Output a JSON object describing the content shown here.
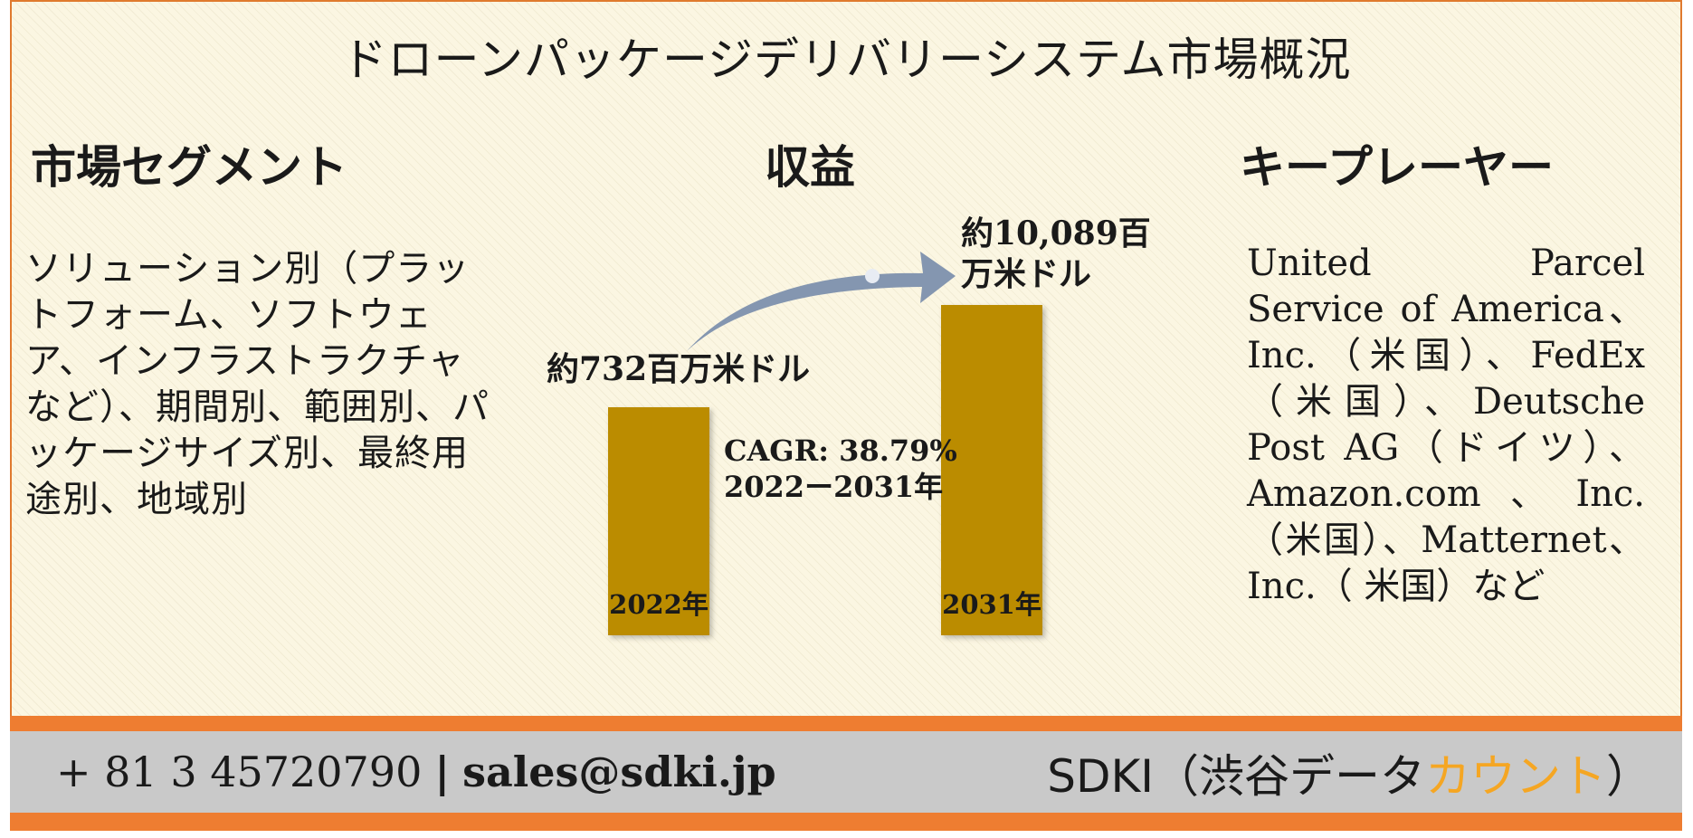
{
  "title": "ドローンパッケージデリバリーシステム市場概況",
  "segments": {
    "heading": "市場セグメント",
    "text": "ソリューション別（プラットフォーム、ソフトウェア、インフラストラクチャなど）、期間別、範囲別、パッケージサイズ別、最終用途別、地域別"
  },
  "revenue": {
    "heading": "収益",
    "cagr_line1": "CAGR: 38.79%",
    "cagr_line2": "2022ー2031年"
  },
  "key_players": {
    "heading": "キープレーヤー",
    "text": "United Parcel Service of America、Inc.（米国）、FedEx（米国）、Deutsche Post AG（ドイツ）、Amazon.com、Inc.（米国）、Matternet、Inc.（ 米国）など"
  },
  "chart_data": {
    "type": "bar",
    "categories": [
      "2022年",
      "2031年"
    ],
    "values": [
      732,
      10089
    ],
    "value_labels": [
      "約732百万米ドル",
      "約10,089百万米ドル"
    ],
    "bar_color": "#bb8c00",
    "arrow_color": "#8496b0"
  },
  "footer": {
    "phone": "+ 81 3 45720790",
    "separator": "|",
    "email": "sales@sdki.jp",
    "brand_main": "SDKI（渋谷データ",
    "brand_accent": "カウント",
    "brand_end": "）",
    "accent_color": "#f5a623",
    "band_color": "#ee7d31"
  }
}
